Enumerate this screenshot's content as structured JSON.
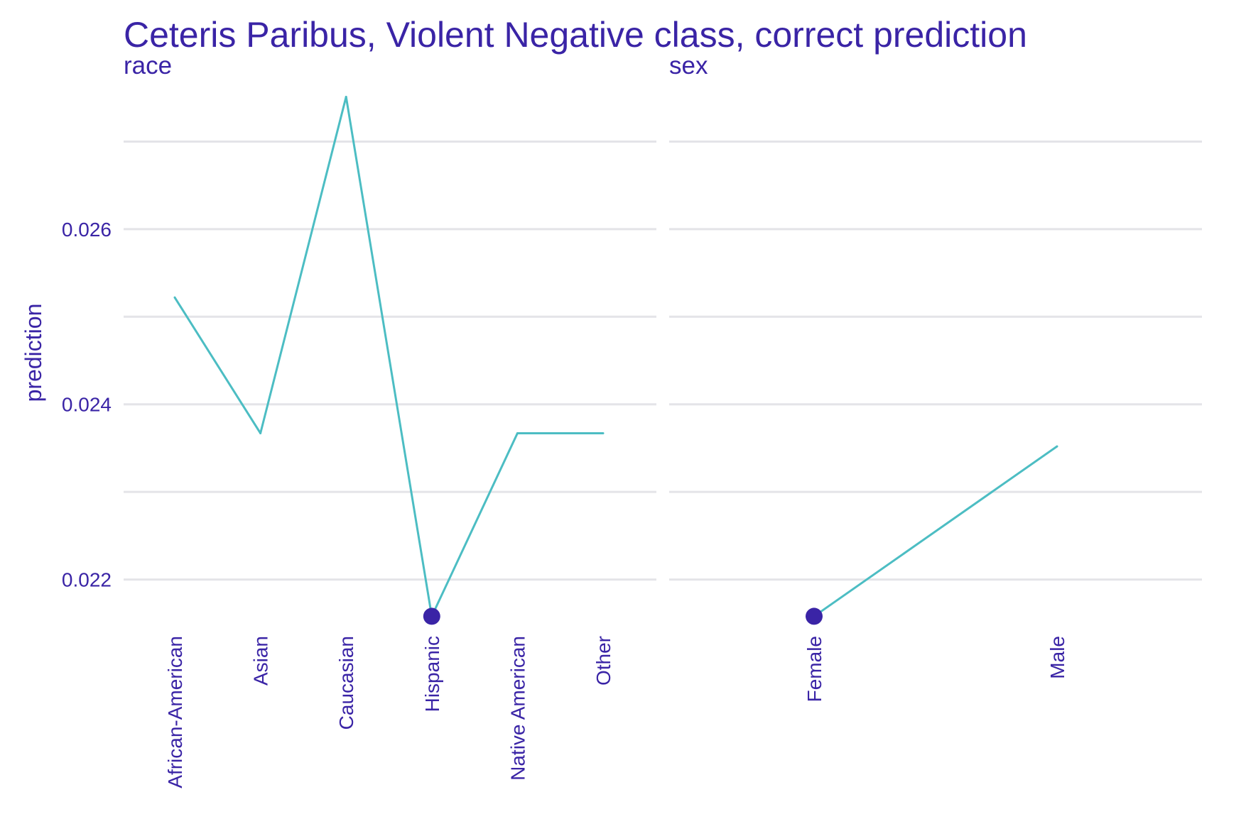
{
  "colors": {
    "text": "#3A24A6",
    "line": "#4CBDC3",
    "point": "#3A24A6",
    "grid": "#E4E4E8",
    "background": "#FFFFFF"
  },
  "chart_data": {
    "type": "line",
    "title": "Ceteris Paribus, Violent Negative class, correct prediction",
    "ylabel": "prediction",
    "ylim": [
      0.02147,
      0.02766
    ],
    "yticks": [
      0.022,
      0.024,
      0.026
    ],
    "yticklabels": [
      "0.022",
      "0.024",
      "0.026"
    ],
    "ygrid_minor": [
      0.023,
      0.025,
      0.027
    ],
    "grid": true,
    "panels": [
      {
        "name": "race",
        "categories": [
          "African-American",
          "Asian",
          "Caucasian",
          "Hispanic",
          "Native American",
          "Other"
        ],
        "values": [
          0.02522,
          0.02367,
          0.02751,
          0.02158,
          0.02367,
          0.02367
        ],
        "observed": {
          "category": "Hispanic",
          "value": 0.02158
        }
      },
      {
        "name": "sex",
        "categories": [
          "Female",
          "Male"
        ],
        "values": [
          0.02158,
          0.02352
        ],
        "observed": {
          "category": "Female",
          "value": 0.02158
        }
      }
    ]
  }
}
